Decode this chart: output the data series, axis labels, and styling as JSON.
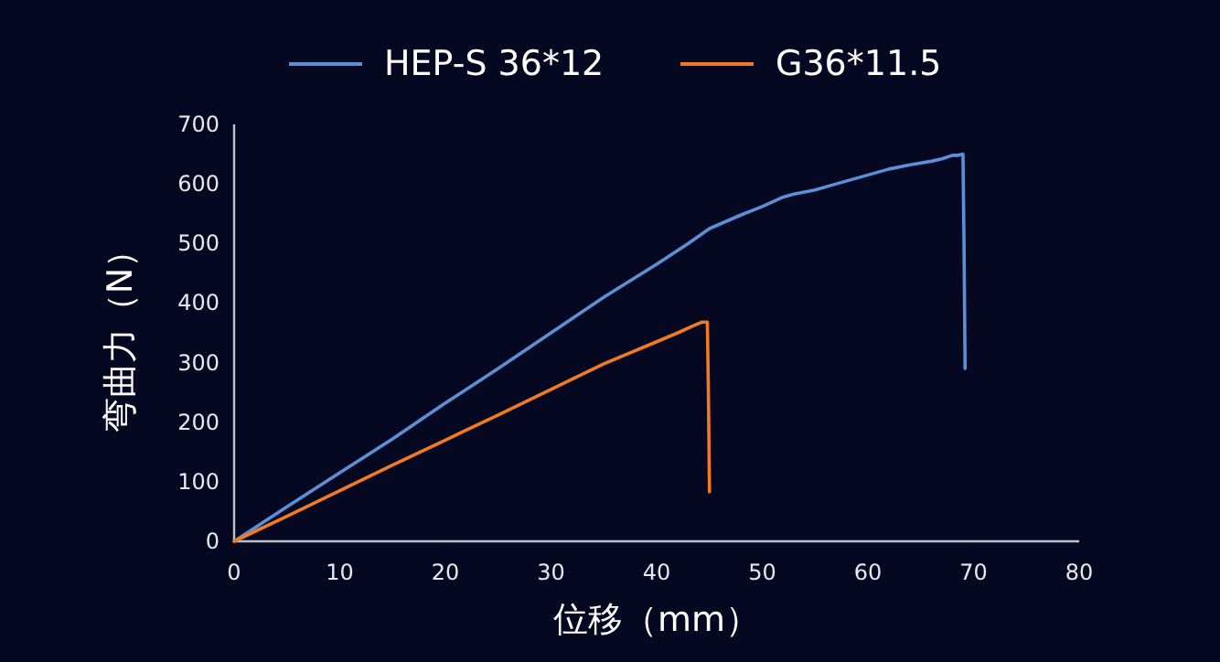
{
  "chart_data": {
    "type": "line",
    "xlabel": "位移（mm）",
    "ylabel": "弯曲力（N）",
    "xlim": [
      0,
      80
    ],
    "ylim": [
      0,
      700
    ],
    "xticks": [
      0,
      10,
      20,
      30,
      40,
      50,
      60,
      70,
      80
    ],
    "yticks": [
      0,
      100,
      200,
      300,
      400,
      500,
      600,
      700
    ],
    "grid": false,
    "legend": "top",
    "line_style": "solid",
    "marker": "none",
    "series": [
      {
        "name": "HEP-S 36*12",
        "color": "#5b8fd6",
        "x": [
          0,
          5,
          10,
          15,
          20,
          25,
          30,
          35,
          40,
          43,
          45,
          48,
          50,
          52,
          53,
          55,
          57,
          60,
          62,
          64,
          66,
          67,
          68,
          68.5,
          69,
          69.1,
          69.2
        ],
        "values": [
          0,
          58,
          115,
          172,
          232,
          290,
          350,
          410,
          465,
          500,
          525,
          548,
          562,
          578,
          583,
          590,
          600,
          615,
          625,
          632,
          638,
          642,
          648,
          648,
          650,
          500,
          290
        ]
      },
      {
        "name": "G36*11.5",
        "color": "#f07b22",
        "x": [
          0,
          5,
          10,
          15,
          20,
          25,
          30,
          35,
          40,
          42,
          43.5,
          44.3,
          44.8,
          44.9,
          45
        ],
        "values": [
          0,
          42,
          85,
          128,
          170,
          212,
          255,
          298,
          335,
          350,
          362,
          368,
          368,
          250,
          83
        ]
      }
    ]
  }
}
